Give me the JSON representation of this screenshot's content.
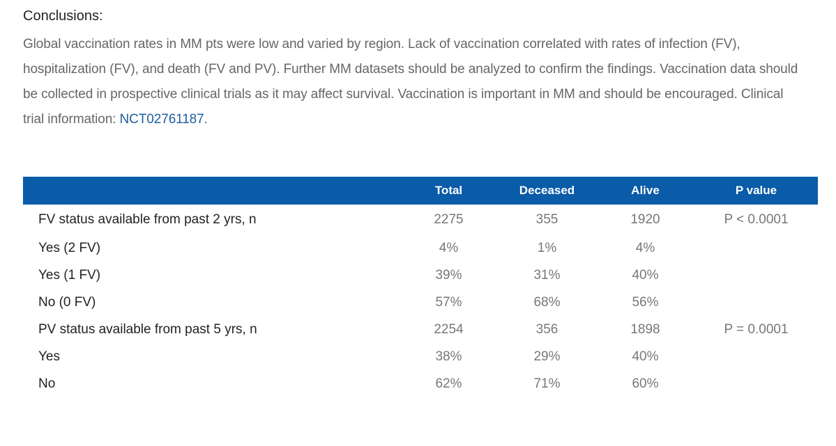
{
  "conclusions": {
    "heading": "Conclusions:",
    "text_before_link": "Global vaccination rates in MM pts were low and varied by region. Lack of vaccination correlated with rates of infection (FV), hospitalization (FV), and death (FV and PV). Further MM datasets should be analyzed to confirm the findings. Vaccination data should be collected in prospective clinical trials as it may affect survival. Vaccination is important in MM and should be encouraged. Clinical trial information: ",
    "trial_link": "NCT02761187",
    "text_after_link": "."
  },
  "table": {
    "headers": [
      "",
      "Total",
      "Deceased",
      "Alive",
      "P value"
    ],
    "rows": [
      {
        "label": "FV status available from past 2 yrs, n",
        "total": "2275",
        "deceased": "355",
        "alive": "1920",
        "p": "P < 0.0001"
      },
      {
        "label": "Yes (2 FV)",
        "total": "4%",
        "deceased": "1%",
        "alive": "4%",
        "p": ""
      },
      {
        "label": "Yes (1 FV)",
        "total": "39%",
        "deceased": "31%",
        "alive": "40%",
        "p": ""
      },
      {
        "label": "No (0 FV)",
        "total": "57%",
        "deceased": "68%",
        "alive": "56%",
        "p": ""
      },
      {
        "label": "PV status available from past 5 yrs, n",
        "total": "2254",
        "deceased": "356",
        "alive": "1898",
        "p": "P = 0.0001"
      },
      {
        "label": "Yes",
        "total": "38%",
        "deceased": "29%",
        "alive": "40%",
        "p": ""
      },
      {
        "label": "No",
        "total": "62%",
        "deceased": "71%",
        "alive": "60%",
        "p": ""
      }
    ]
  },
  "colors": {
    "header_bg": "#0a5ba8",
    "link": "#1f5fa0",
    "body_text": "#666666"
  }
}
